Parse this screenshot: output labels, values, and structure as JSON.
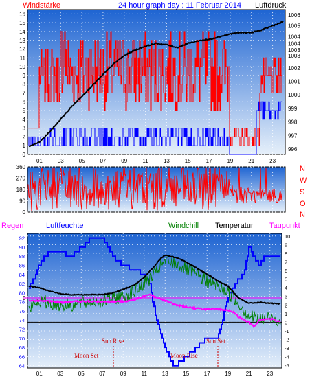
{
  "header": {
    "left_label": "Windstärke",
    "title": "24 hour graph day : 11 Februar 2014",
    "right_label": "Luftdruck"
  },
  "colors": {
    "wind": "#ff0000",
    "wind_blue": "#0000ff",
    "pressure": "#000000",
    "humidity": "#0000ff",
    "windchill": "#008000",
    "temperature": "#000000",
    "dewpoint": "#ff00ff",
    "rain": "#ff00ff",
    "direction": "#ff0000",
    "panel_gradient_top": "#1e64d2",
    "panel_gradient_bottom": "#e6f0fa"
  },
  "compass_labels": [
    "N",
    "W",
    "S",
    "O",
    "N"
  ],
  "bottom_legend": {
    "rain": "Regen",
    "humidity": "Luftfeuchte",
    "windchill": "Windchill",
    "temperature": "Temperatur",
    "dewpoint": "Taupunkt"
  },
  "events": {
    "sun_rise": "Sun Rise",
    "sun_set": "Sun Set",
    "moon_set": "Moon Set",
    "moon_rise": "Moon Rise"
  },
  "chart_data": [
    {
      "type": "line",
      "panel": "wind_pressure",
      "x_ticks": [
        "01",
        "03",
        "05",
        "07",
        "09",
        "11",
        "13",
        "15",
        "17",
        "19",
        "21",
        "23"
      ],
      "y_left_ticks": [
        "0",
        "1",
        "2",
        "3",
        "4",
        "5",
        "6",
        "7",
        "8",
        "9",
        "10",
        "11",
        "12",
        "13",
        "14",
        "15",
        "16"
      ],
      "y_left_range": [
        0,
        16.5
      ],
      "y_right_ticks": [
        "996",
        "997",
        "998",
        "999",
        "1000",
        "1001",
        "1002",
        "1003",
        "1003",
        "1004",
        "1004",
        "1005",
        "1006"
      ],
      "y_right_range": [
        995.6,
        1006.3
      ],
      "series": [
        {
          "name": "Windstärke",
          "color": "red"
        },
        {
          "name": "Luftdruck",
          "color": "black",
          "x": [
            0,
            1,
            2,
            3,
            4,
            5,
            6,
            7,
            8,
            9,
            10,
            11,
            12,
            13,
            14,
            15,
            16,
            17,
            18,
            19,
            20,
            21,
            22,
            23,
            24
          ],
          "y": [
            996.2,
            996.5,
            997.3,
            998.2,
            999.1,
            999.9,
            1000.7,
            1001.5,
            1002.3,
            1002.9,
            1003.3,
            1003.6,
            1003.8,
            1003.7,
            1003.5,
            1003.8,
            1004.0,
            1004.1,
            1004.3,
            1004.5,
            1004.6,
            1004.6,
            1004.8,
            1005.1,
            1005.4
          ]
        }
      ]
    },
    {
      "type": "line",
      "panel": "wind_direction",
      "y_ticks": [
        "360",
        "270",
        "180",
        "90",
        "0"
      ],
      "y_range": [
        0,
        360
      ],
      "series": [
        {
          "name": "",
          "color": "red"
        }
      ]
    },
    {
      "type": "line",
      "panel": "temperature_humidity",
      "x_ticks": [
        "01",
        "03",
        "05",
        "07",
        "09",
        "11",
        "13",
        "15",
        "17",
        "19",
        "21",
        "23"
      ],
      "y_left_ticks": [
        "64",
        "66",
        "68",
        "70",
        "72",
        "74",
        "76",
        "78",
        "80",
        "82",
        "84",
        "86",
        "88",
        "90",
        "92"
      ],
      "y_left_range": [
        63.5,
        93
      ],
      "y_right_ticks": [
        "-5",
        "-4",
        "-3",
        "-2",
        "-1",
        "0",
        "1",
        "2",
        "3",
        "4",
        "5",
        "6",
        "7",
        "8",
        "9",
        "10"
      ],
      "y_right_range": [
        -5.3,
        10.3
      ],
      "rain_marker": "0",
      "series": [
        {
          "name": "Luftfeuchte",
          "color": "blue",
          "x": [
            0,
            0.5,
            1,
            1.5,
            2,
            3,
            4,
            5,
            6,
            7,
            7.5,
            8,
            9,
            10,
            11,
            11.5,
            12,
            12.5,
            13,
            13.5,
            14,
            15,
            16,
            17,
            18,
            19,
            20,
            20.5,
            21,
            21.5,
            22,
            22.5,
            23,
            24
          ],
          "y": [
            81,
            83,
            86,
            88,
            89,
            89,
            88,
            90,
            92,
            92,
            90,
            88,
            86,
            85,
            84,
            82,
            76,
            72,
            68,
            65,
            64,
            66,
            68,
            70,
            70,
            79,
            83,
            84,
            90,
            88,
            86,
            88,
            88,
            88
          ]
        },
        {
          "name": "Windchill",
          "color": "green",
          "x": [
            0,
            1,
            2,
            3,
            4,
            5,
            6,
            7,
            8,
            9,
            10,
            11,
            12,
            12.5,
            13,
            14,
            15,
            16,
            17,
            18,
            19,
            20,
            21,
            22,
            23,
            24
          ],
          "y": [
            1.5,
            2.5,
            2.2,
            2.0,
            2.0,
            2.2,
            2.4,
            2.5,
            2.7,
            3.0,
            3.5,
            4.5,
            5.5,
            6.5,
            7.0,
            6.8,
            6.2,
            5.5,
            4.8,
            4.2,
            3.5,
            2.2,
            0.8,
            0.3,
            0.5,
            0.2
          ]
        },
        {
          "name": "Temperatur",
          "color": "black",
          "x": [
            0,
            1,
            2,
            3,
            4,
            5,
            6,
            7,
            8,
            9,
            10,
            11,
            12,
            12.5,
            13,
            14,
            15,
            16,
            17,
            18,
            19,
            20,
            21,
            22,
            23,
            24
          ],
          "y": [
            4.2,
            4.0,
            3.6,
            3.3,
            3.2,
            3.2,
            3.2,
            3.2,
            3.4,
            3.8,
            4.3,
            5.2,
            6.5,
            7.3,
            7.8,
            7.5,
            7.0,
            6.3,
            5.6,
            4.8,
            4.2,
            2.8,
            2.2,
            2.3,
            2.2,
            2.1
          ]
        },
        {
          "name": "Taupunkt",
          "color": "magenta",
          "x": [
            0,
            1,
            2,
            3,
            4,
            5,
            6,
            7,
            8,
            9,
            10,
            11,
            11.5,
            12,
            13,
            14,
            15,
            16,
            17,
            18,
            19,
            19.5,
            20,
            21,
            21.5,
            22,
            23,
            24
          ],
          "y": [
            2.5,
            2.5,
            2.4,
            2.3,
            2.4,
            2.4,
            2.4,
            2.4,
            2.4,
            2.4,
            2.6,
            3.0,
            3.3,
            3.0,
            2.5,
            2.0,
            1.8,
            1.6,
            1.5,
            1.5,
            1.4,
            1.2,
            0.6,
            0.0,
            -0.5,
            0.3,
            0.4,
            0.1
          ]
        }
      ]
    }
  ]
}
